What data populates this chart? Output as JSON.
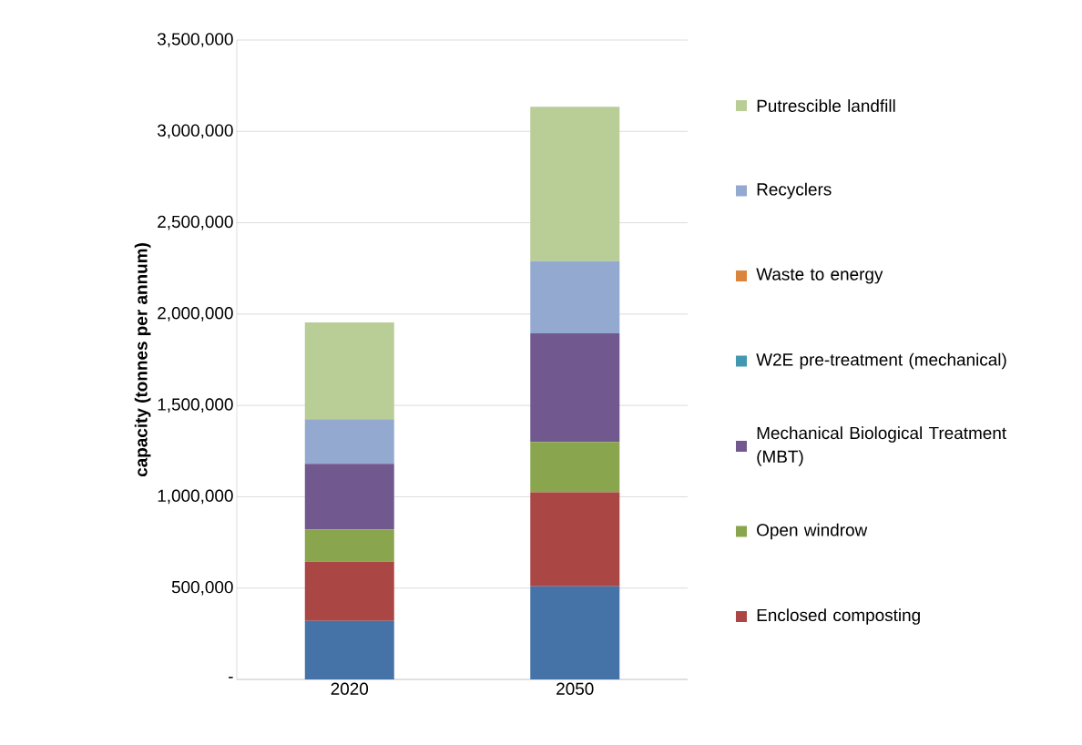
{
  "chart_data": {
    "type": "bar",
    "stacked": true,
    "ylabel": "capacity (tonnes per annum)",
    "categories": [
      "2020",
      "2050"
    ],
    "series": [
      {
        "color": "#4572a7",
        "values": [
          320000,
          510000
        ]
      },
      {
        "name": "Enclosed composting",
        "color": "#aa4643",
        "values": [
          325000,
          515000
        ]
      },
      {
        "name": "Open windrow",
        "color": "#89a54e",
        "values": [
          175000,
          275000
        ]
      },
      {
        "name": "Mechanical Biological Treatment (MBT)",
        "color": "#71588f",
        "values": [
          360000,
          595000
        ]
      },
      {
        "name": "W2E pre-treatment (mechanical)",
        "color": "#4198af",
        "values": [
          0,
          0
        ]
      },
      {
        "name": "Waste to energy",
        "color": "#db843d",
        "values": [
          0,
          0
        ]
      },
      {
        "name": "Recyclers",
        "color": "#93a9cf",
        "values": [
          245000,
          395000
        ]
      },
      {
        "name": "Putrescible landfill",
        "color": "#b9cd96",
        "values": [
          530000,
          845000
        ]
      }
    ],
    "ylim": [
      0,
      3500000
    ],
    "yticks": [
      {
        "value": 0,
        "label": "-"
      },
      {
        "value": 500000,
        "label": "500,000"
      },
      {
        "value": 1000000,
        "label": "1,000,000"
      },
      {
        "value": 1500000,
        "label": "1,500,000"
      },
      {
        "value": 2000000,
        "label": "2,000,000"
      },
      {
        "value": 2500000,
        "label": "2,500,000"
      },
      {
        "value": 3000000,
        "label": "3,000,000"
      },
      {
        "value": 3500000,
        "label": "3,500,000"
      }
    ],
    "grid": "y",
    "legend": "right"
  }
}
